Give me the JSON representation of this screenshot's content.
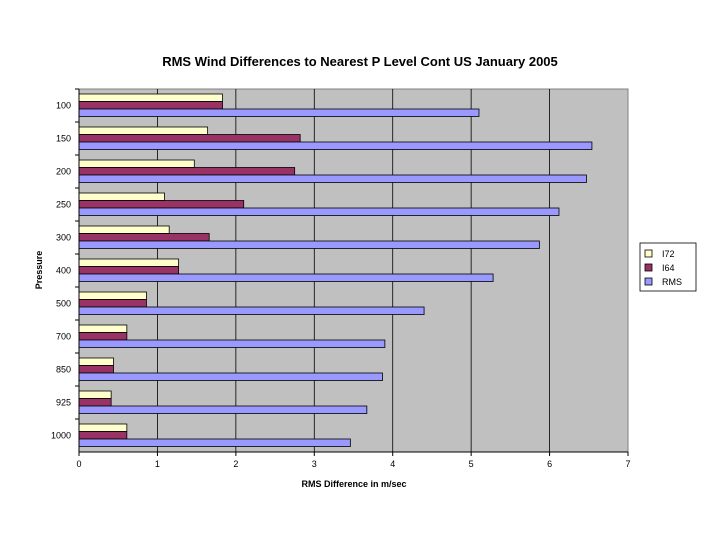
{
  "chart_data": {
    "type": "bar",
    "orientation": "horizontal",
    "title": "RMS Wind Differences to Nearest P Level Cont US January 2005",
    "xlabel": "RMS Difference in m/sec",
    "ylabel": "Pressure",
    "xlim": [
      0,
      7
    ],
    "xticks": [
      "0",
      "1",
      "2",
      "3",
      "4",
      "5",
      "6",
      "7"
    ],
    "grid": "vertical",
    "legend_position": "right",
    "categories": [
      "100",
      "150",
      "200",
      "250",
      "300",
      "400",
      "500",
      "700",
      "850",
      "925",
      "1000"
    ],
    "series": [
      {
        "name": "I72",
        "color": "#FFFFCC",
        "values": [
          1.83,
          1.64,
          1.47,
          1.09,
          1.15,
          1.27,
          0.86,
          0.61,
          0.44,
          0.41,
          0.61
        ]
      },
      {
        "name": "I64",
        "color": "#993366",
        "values": [
          1.83,
          2.82,
          2.75,
          2.1,
          1.66,
          1.27,
          0.86,
          0.61,
          0.44,
          0.41,
          0.61
        ]
      },
      {
        "name": "RMS",
        "color": "#9999FF",
        "values": [
          5.1,
          6.54,
          6.47,
          6.12,
          5.87,
          5.28,
          4.4,
          3.9,
          3.87,
          3.67,
          3.46
        ]
      }
    ],
    "plot_background": "#C0C0C0"
  }
}
